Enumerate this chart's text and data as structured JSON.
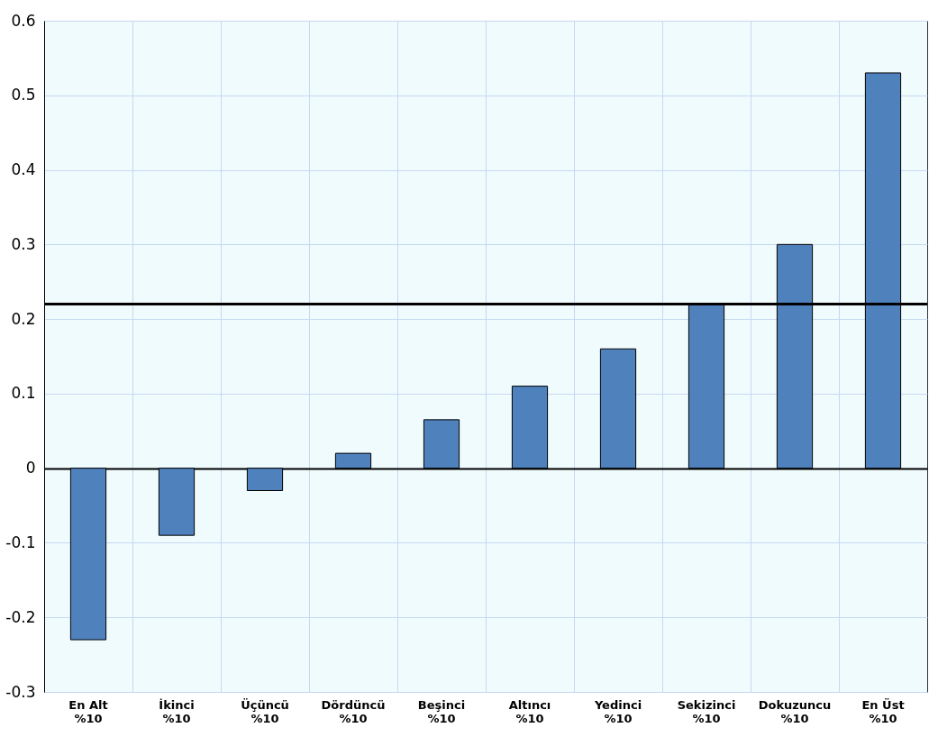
{
  "chart_data": {
    "type": "bar",
    "categories": [
      "En Alt %10",
      "İkinci %10",
      "Üçüncü %10",
      "Dördüncü %10",
      "Beşinci %10",
      "Altıncı %10",
      "Yedinci %10",
      "Sekizinci %10",
      "Dokuzuncu %10",
      "En Üst %10"
    ],
    "values": [
      -0.23,
      -0.09,
      -0.03,
      0.02,
      0.065,
      0.11,
      0.16,
      0.22,
      0.3,
      0.53
    ],
    "color": "#4f81bd",
    "ylim": [
      -0.3,
      0.6
    ],
    "yticks": [
      -0.3,
      -0.2,
      -0.1,
      0,
      0.1,
      0.2,
      0.3,
      0.4,
      0.5,
      0.6
    ],
    "grid": true,
    "ref_lines": [
      {
        "axis": "y",
        "value": 0.22,
        "color": "#000000"
      }
    ]
  }
}
